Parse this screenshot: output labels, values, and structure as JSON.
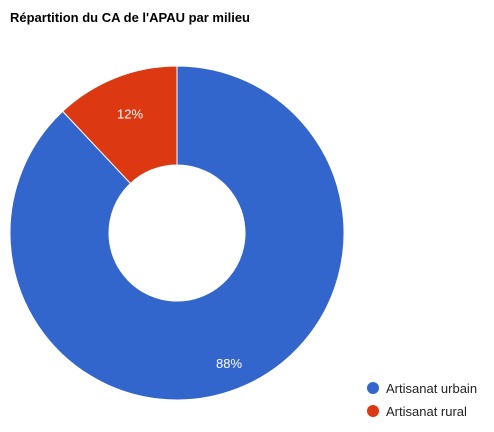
{
  "chart_data": {
    "type": "pie",
    "donut": true,
    "title": "Répartition du CA de l'APAU par milieu",
    "legend_position": "bottom-right",
    "slices": [
      {
        "label": "Artisanat urbain",
        "value": 88,
        "display": "88%",
        "color": "#3366cc"
      },
      {
        "label": "Artisanat rural",
        "value": 12,
        "display": "12%",
        "color": "#dc3912"
      }
    ]
  }
}
